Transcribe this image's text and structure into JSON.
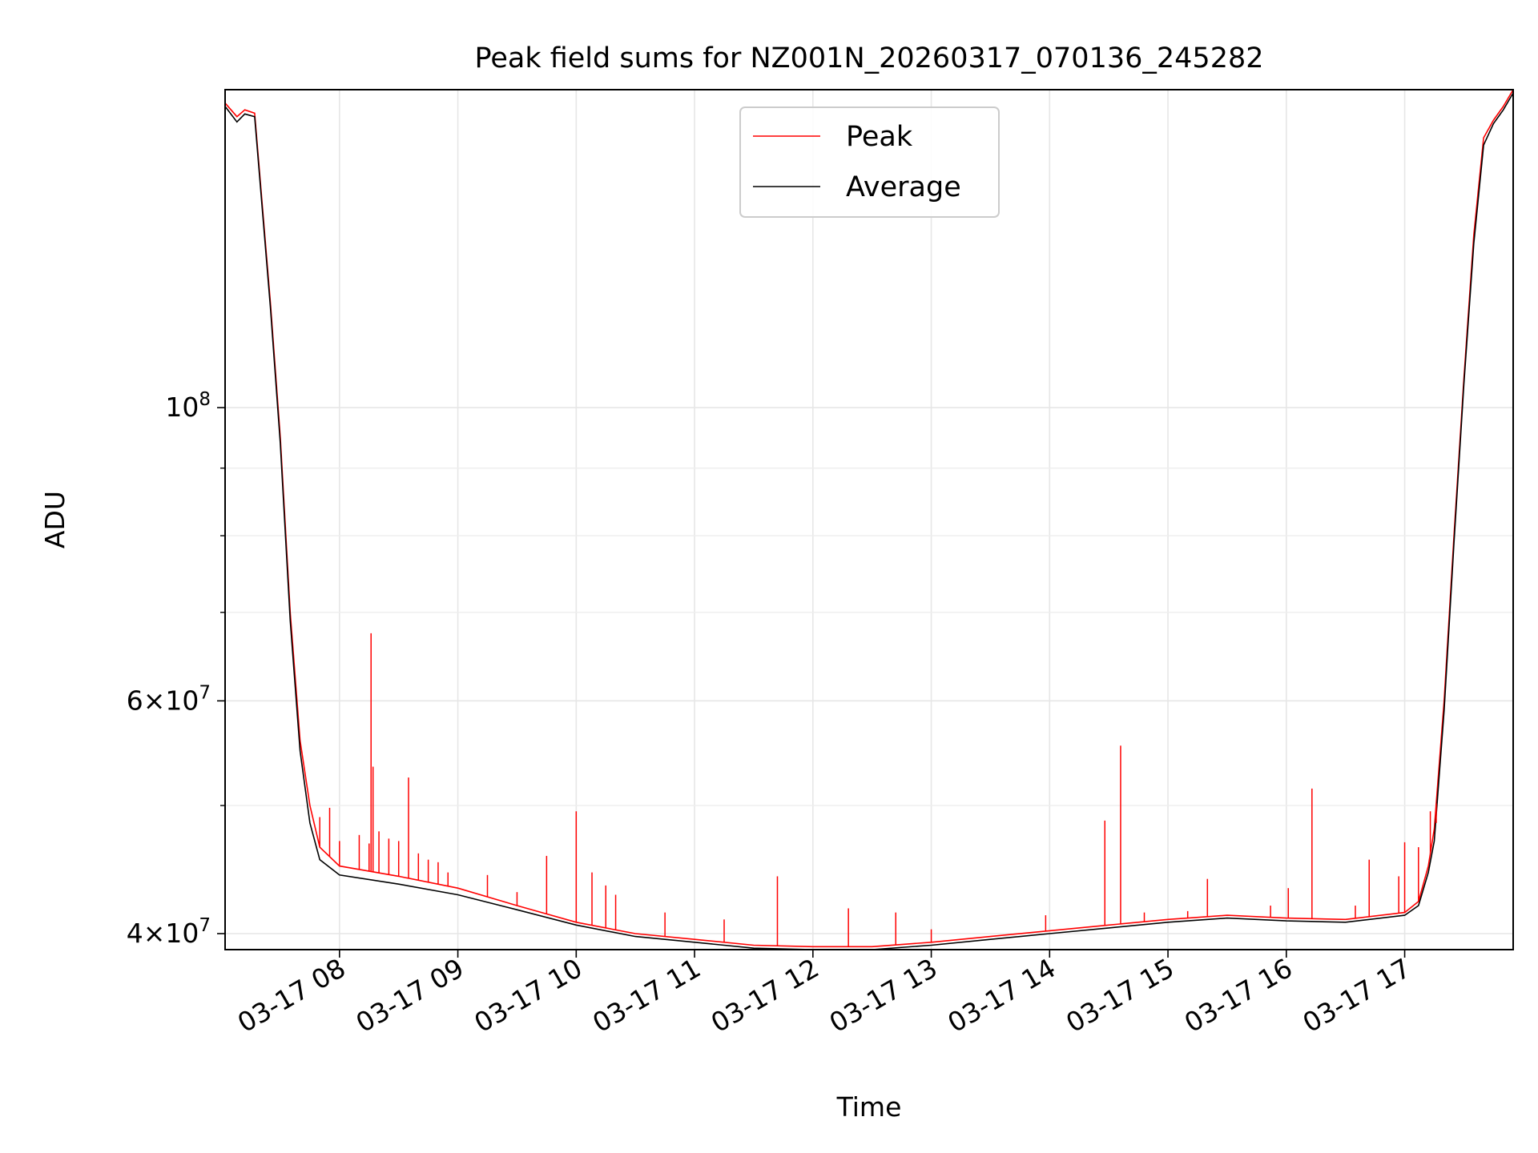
{
  "chart_data": {
    "type": "line",
    "title": "Peak field sums for NZ001N_20260317_070136_245282",
    "xlabel": "Time",
    "ylabel": "ADU",
    "y_scale": "log",
    "grid": true,
    "legend_position": "upper-center",
    "x_range": [
      "2026-03-17 07:02",
      "2026-03-17 17:55"
    ],
    "ylim": [
      38900000,
      174000000
    ],
    "x_ticks": [
      {
        "time": "2026-03-17 08:00",
        "label": "03-17 08"
      },
      {
        "time": "2026-03-17 09:00",
        "label": "03-17 09"
      },
      {
        "time": "2026-03-17 10:00",
        "label": "03-17 10"
      },
      {
        "time": "2026-03-17 11:00",
        "label": "03-17 11"
      },
      {
        "time": "2026-03-17 12:00",
        "label": "03-17 12"
      },
      {
        "time": "2026-03-17 13:00",
        "label": "03-17 13"
      },
      {
        "time": "2026-03-17 14:00",
        "label": "03-17 14"
      },
      {
        "time": "2026-03-17 15:00",
        "label": "03-17 15"
      },
      {
        "time": "2026-03-17 16:00",
        "label": "03-17 16"
      },
      {
        "time": "2026-03-17 17:00",
        "label": "03-17 17"
      }
    ],
    "y_major_ticks": [
      {
        "value": 40000000,
        "mantissa": "4",
        "exponent": "7",
        "label": "4 × 10^7"
      },
      {
        "value": 60000000,
        "mantissa": "6",
        "exponent": "7",
        "label": "6 × 10^7"
      },
      {
        "value": 100000000,
        "mantissa": "",
        "exponent": "8",
        "label": "10^8"
      }
    ],
    "y_minor_ticks": [
      50000000,
      70000000,
      80000000,
      90000000
    ],
    "series": [
      {
        "name": "Peak",
        "color": "#ff0000",
        "baseline": [
          [
            "2026-03-17 07:02",
            170000000
          ],
          [
            "2026-03-17 07:08",
            166000000
          ],
          [
            "2026-03-17 07:12",
            168000000
          ],
          [
            "2026-03-17 07:17",
            167000000
          ],
          [
            "2026-03-17 07:25",
            120000000
          ],
          [
            "2026-03-17 07:30",
            95000000
          ],
          [
            "2026-03-17 07:35",
            70000000
          ],
          [
            "2026-03-17 07:40",
            56000000
          ],
          [
            "2026-03-17 07:45",
            50000000
          ],
          [
            "2026-03-17 07:50",
            46500000
          ],
          [
            "2026-03-17 08:00",
            45000000
          ],
          [
            "2026-03-17 08:30",
            44200000
          ],
          [
            "2026-03-17 09:00",
            43300000
          ],
          [
            "2026-03-17 09:30",
            42000000
          ],
          [
            "2026-03-17 10:00",
            40800000
          ],
          [
            "2026-03-17 10:30",
            40000000
          ],
          [
            "2026-03-17 11:00",
            39600000
          ],
          [
            "2026-03-17 11:30",
            39200000
          ],
          [
            "2026-03-17 12:00",
            39100000
          ],
          [
            "2026-03-17 12:30",
            39100000
          ],
          [
            "2026-03-17 13:00",
            39400000
          ],
          [
            "2026-03-17 13:30",
            39800000
          ],
          [
            "2026-03-17 14:00",
            40200000
          ],
          [
            "2026-03-17 14:30",
            40600000
          ],
          [
            "2026-03-17 15:00",
            41000000
          ],
          [
            "2026-03-17 15:30",
            41300000
          ],
          [
            "2026-03-17 16:00",
            41100000
          ],
          [
            "2026-03-17 16:30",
            41000000
          ],
          [
            "2026-03-17 17:00",
            41500000
          ],
          [
            "2026-03-17 17:07",
            42300000
          ],
          [
            "2026-03-17 17:12",
            45000000
          ],
          [
            "2026-03-17 17:15",
            48000000
          ],
          [
            "2026-03-17 17:20",
            60000000
          ],
          [
            "2026-03-17 17:25",
            80000000
          ],
          [
            "2026-03-17 17:30",
            105000000
          ],
          [
            "2026-03-17 17:35",
            135000000
          ],
          [
            "2026-03-17 17:40",
            160000000
          ],
          [
            "2026-03-17 17:45",
            165000000
          ],
          [
            "2026-03-17 17:50",
            169000000
          ],
          [
            "2026-03-17 17:55",
            174000000
          ]
        ],
        "spikes": [
          [
            "2026-03-17 07:50",
            49000000
          ],
          [
            "2026-03-17 07:55",
            49800000
          ],
          [
            "2026-03-17 08:00",
            47000000
          ],
          [
            "2026-03-17 08:10",
            47500000
          ],
          [
            "2026-03-17 08:15",
            46800000
          ],
          [
            "2026-03-17 08:16",
            67500000
          ],
          [
            "2026-03-17 08:17",
            53500000
          ],
          [
            "2026-03-17 08:20",
            47800000
          ],
          [
            "2026-03-17 08:25",
            47200000
          ],
          [
            "2026-03-17 08:30",
            47000000
          ],
          [
            "2026-03-17 08:35",
            52500000
          ],
          [
            "2026-03-17 08:40",
            46000000
          ],
          [
            "2026-03-17 08:45",
            45500000
          ],
          [
            "2026-03-17 08:50",
            45300000
          ],
          [
            "2026-03-17 08:55",
            44500000
          ],
          [
            "2026-03-17 09:15",
            44300000
          ],
          [
            "2026-03-17 09:30",
            43000000
          ],
          [
            "2026-03-17 09:45",
            45800000
          ],
          [
            "2026-03-17 10:00",
            49500000
          ],
          [
            "2026-03-17 10:08",
            44500000
          ],
          [
            "2026-03-17 10:15",
            43500000
          ],
          [
            "2026-03-17 10:20",
            42800000
          ],
          [
            "2026-03-17 10:45",
            41500000
          ],
          [
            "2026-03-17 11:15",
            41000000
          ],
          [
            "2026-03-17 11:42",
            44200000
          ],
          [
            "2026-03-17 12:18",
            41800000
          ],
          [
            "2026-03-17 12:42",
            41500000
          ],
          [
            "2026-03-17 13:00",
            40300000
          ],
          [
            "2026-03-17 13:58",
            41300000
          ],
          [
            "2026-03-17 14:28",
            48700000
          ],
          [
            "2026-03-17 14:36",
            55500000
          ],
          [
            "2026-03-17 14:48",
            41500000
          ],
          [
            "2026-03-17 15:10",
            41600000
          ],
          [
            "2026-03-17 15:20",
            44000000
          ],
          [
            "2026-03-17 15:52",
            42000000
          ],
          [
            "2026-03-17 16:01",
            43300000
          ],
          [
            "2026-03-17 16:13",
            51500000
          ],
          [
            "2026-03-17 16:35",
            42000000
          ],
          [
            "2026-03-17 16:42",
            45500000
          ],
          [
            "2026-03-17 16:57",
            44200000
          ],
          [
            "2026-03-17 17:00",
            46900000
          ],
          [
            "2026-03-17 17:07",
            46500000
          ],
          [
            "2026-03-17 17:13",
            49500000
          ],
          [
            "2026-03-17 17:16",
            48500000
          ]
        ]
      },
      {
        "name": "Average",
        "color": "#000000",
        "baseline": [
          [
            "2026-03-17 07:02",
            169000000
          ],
          [
            "2026-03-17 07:08",
            164500000
          ],
          [
            "2026-03-17 07:12",
            166800000
          ],
          [
            "2026-03-17 07:17",
            166000000
          ],
          [
            "2026-03-17 07:25",
            119000000
          ],
          [
            "2026-03-17 07:30",
            94000000
          ],
          [
            "2026-03-17 07:35",
            69000000
          ],
          [
            "2026-03-17 07:40",
            55000000
          ],
          [
            "2026-03-17 07:45",
            48500000
          ],
          [
            "2026-03-17 07:50",
            45500000
          ],
          [
            "2026-03-17 08:00",
            44300000
          ],
          [
            "2026-03-17 08:30",
            43600000
          ],
          [
            "2026-03-17 09:00",
            42800000
          ],
          [
            "2026-03-17 09:30",
            41700000
          ],
          [
            "2026-03-17 10:00",
            40600000
          ],
          [
            "2026-03-17 10:30",
            39800000
          ],
          [
            "2026-03-17 11:00",
            39400000
          ],
          [
            "2026-03-17 11:30",
            39000000
          ],
          [
            "2026-03-17 12:00",
            38900000
          ],
          [
            "2026-03-17 12:30",
            38900000
          ],
          [
            "2026-03-17 13:00",
            39200000
          ],
          [
            "2026-03-17 13:30",
            39600000
          ],
          [
            "2026-03-17 14:00",
            40000000
          ],
          [
            "2026-03-17 14:30",
            40400000
          ],
          [
            "2026-03-17 15:00",
            40800000
          ],
          [
            "2026-03-17 15:30",
            41100000
          ],
          [
            "2026-03-17 16:00",
            40900000
          ],
          [
            "2026-03-17 16:30",
            40800000
          ],
          [
            "2026-03-17 17:00",
            41300000
          ],
          [
            "2026-03-17 17:07",
            42000000
          ],
          [
            "2026-03-17 17:12",
            44500000
          ],
          [
            "2026-03-17 17:15",
            47000000
          ],
          [
            "2026-03-17 17:20",
            59000000
          ],
          [
            "2026-03-17 17:25",
            79000000
          ],
          [
            "2026-03-17 17:30",
            104000000
          ],
          [
            "2026-03-17 17:35",
            133000000
          ],
          [
            "2026-03-17 17:40",
            158000000
          ],
          [
            "2026-03-17 17:45",
            164000000
          ],
          [
            "2026-03-17 17:50",
            168000000
          ],
          [
            "2026-03-17 17:55",
            173000000
          ]
        ]
      }
    ]
  }
}
